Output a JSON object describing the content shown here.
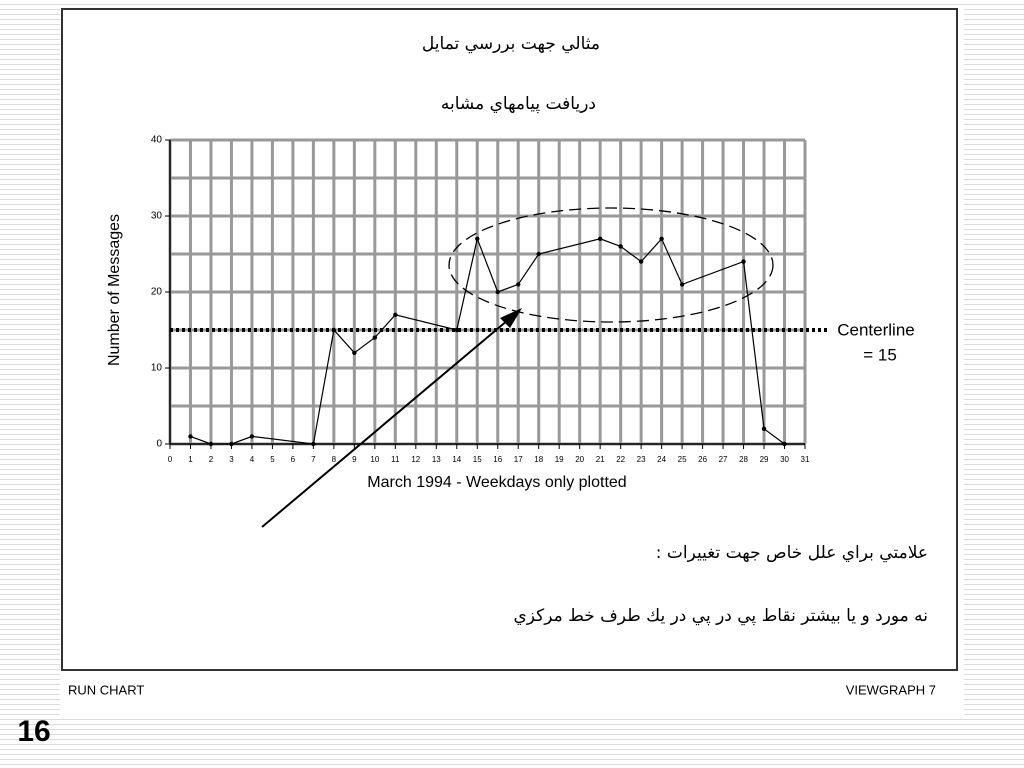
{
  "chart_data": {
    "type": "line",
    "title": "مثالي جهت بررسي تمايل",
    "subtitle": "دريافت پيامهاي مشابه",
    "xlabel": "March 1994 - Weekdays only plotted",
    "ylabel": "Number of Messages",
    "x": [
      1,
      2,
      3,
      4,
      7,
      8,
      9,
      10,
      11,
      14,
      15,
      16,
      17,
      18,
      21,
      22,
      23,
      24,
      25,
      28,
      29,
      30
    ],
    "series": [
      {
        "color": "#000000",
        "values": [
          1,
          0,
          0,
          1,
          0,
          15,
          12,
          14,
          17,
          15,
          27,
          20,
          21,
          25,
          27,
          26,
          24,
          27,
          21,
          24,
          2,
          0
        ]
      }
    ],
    "xlim": [
      0,
      31
    ],
    "xticks": [
      0,
      1,
      2,
      3,
      4,
      5,
      6,
      7,
      8,
      9,
      10,
      11,
      12,
      13,
      14,
      15,
      16,
      17,
      18,
      19,
      20,
      21,
      22,
      23,
      24,
      25,
      26,
      27,
      28,
      29,
      30,
      31
    ],
    "ylim": [
      0,
      40
    ],
    "yticks": [
      0,
      10,
      20,
      30,
      40
    ],
    "yminor": [
      5,
      15,
      25,
      35
    ],
    "grid": true,
    "centerline": {
      "value": 15,
      "label": [
        "Centerline",
        "= 15"
      ]
    },
    "notes": [
      "علامتي براي علل خاص جهت تغييرات :",
      "نه مورد و يا بيشتر نقاط پي در پي در يك طرف خط مركزي"
    ]
  },
  "slide": {
    "footer_left": "RUN CHART",
    "footer_right": "VIEWGRAPH 7",
    "page_number": "16"
  }
}
